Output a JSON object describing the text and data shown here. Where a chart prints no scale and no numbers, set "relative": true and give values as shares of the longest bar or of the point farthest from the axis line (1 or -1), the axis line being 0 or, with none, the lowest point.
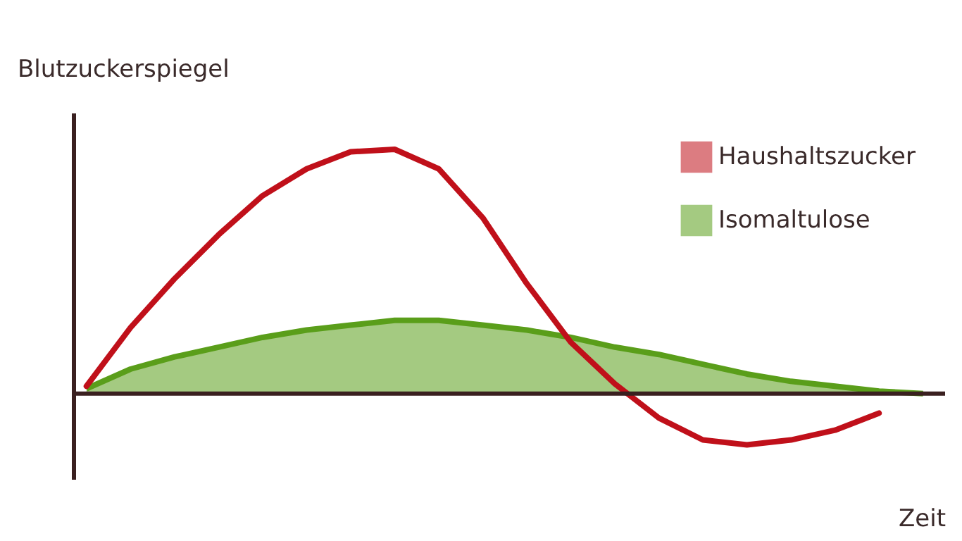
{
  "chart_data": {
    "type": "line",
    "relative": true,
    "xlabel": "Zeit",
    "ylabel": "Blutzuckerspiegel",
    "legend": "top right",
    "categories": [
      null,
      null,
      null,
      null,
      null,
      null,
      null,
      null,
      null,
      null,
      null,
      null,
      null,
      null,
      null,
      null,
      null,
      null,
      null,
      null
    ],
    "series": [
      {
        "name": "Haushaltszucker",
        "color": "#c0101a",
        "values": [
          0.03,
          0.27,
          0.47,
          0.65,
          0.81,
          0.92,
          0.99,
          1.0,
          0.92,
          0.72,
          0.45,
          0.21,
          0.04,
          -0.1,
          -0.19,
          -0.21,
          -0.19,
          -0.15,
          -0.08,
          null
        ]
      },
      {
        "name": "Isomaltulose",
        "type": "area",
        "color": "#5a9e1a",
        "values": [
          0.02,
          0.1,
          0.15,
          0.19,
          0.23,
          0.26,
          0.28,
          0.3,
          0.3,
          0.28,
          0.26,
          0.23,
          0.19,
          0.16,
          0.12,
          0.08,
          0.05,
          0.03,
          0.01,
          0.0
        ]
      }
    ]
  }
}
